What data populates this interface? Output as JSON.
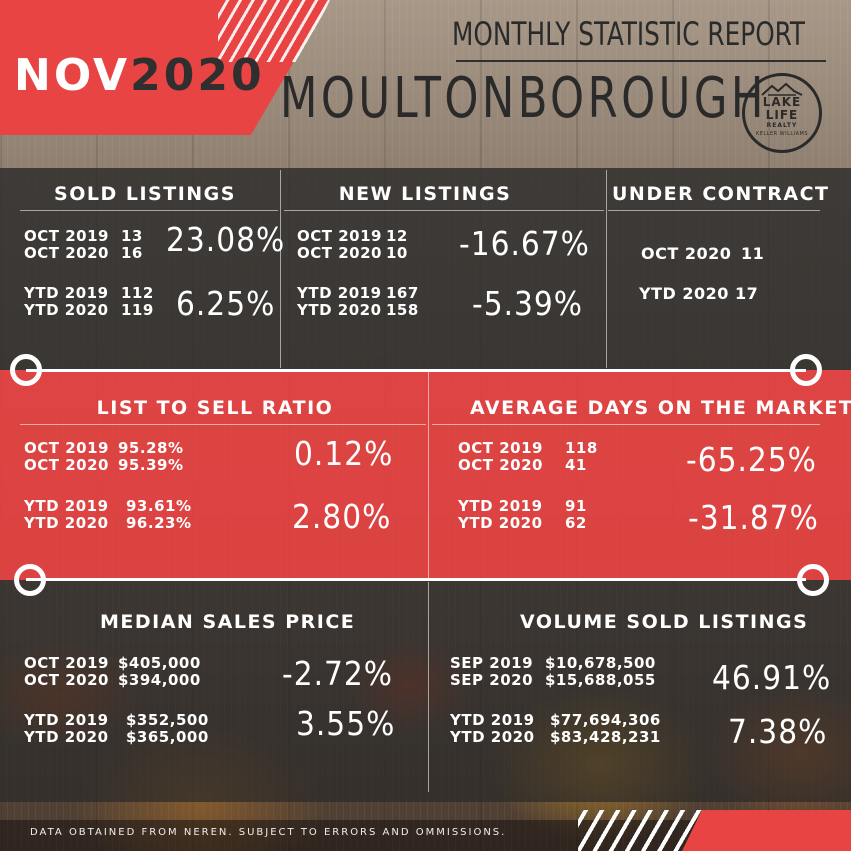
{
  "header": {
    "month": "NOV",
    "year": "2020",
    "report_title": "MONTHLY STATISTIC REPORT",
    "city": "MOULTONBOROUGH",
    "logo": {
      "name_line1": "LAKE",
      "name_line2": "LIFE",
      "sub": "REALTY",
      "brokerage": "KELLER WILLIAMS"
    }
  },
  "sold_listings": {
    "title": "SOLD LISTINGS",
    "monthly": [
      {
        "label": "OCT 2019",
        "value": "13"
      },
      {
        "label": "OCT 2020",
        "value": "16"
      }
    ],
    "monthly_change": "23.08%",
    "ytd": [
      {
        "label": "YTD 2019",
        "value": "112"
      },
      {
        "label": "YTD 2020",
        "value": "119"
      }
    ],
    "ytd_change": "6.25%"
  },
  "new_listings": {
    "title": "NEW LISTINGS",
    "monthly": [
      {
        "label": "OCT 2019",
        "value": "12"
      },
      {
        "label": "OCT 2020",
        "value": "10"
      }
    ],
    "monthly_change": "-16.67%",
    "ytd": [
      {
        "label": "YTD 2019",
        "value": "167"
      },
      {
        "label": "YTD 2020",
        "value": "158"
      }
    ],
    "ytd_change": "-5.39%"
  },
  "under_contract": {
    "title": "UNDER CONTRACT",
    "rows": [
      {
        "label": "OCT  2020",
        "value": "11"
      },
      {
        "label": "YTD  2020",
        "value": "17"
      }
    ]
  },
  "list_to_sell": {
    "title": "LIST TO SELL RATIO",
    "monthly": [
      {
        "label": "OCT 2019",
        "value": "95.28%"
      },
      {
        "label": "OCT 2020",
        "value": "95.39%"
      }
    ],
    "monthly_change": "0.12%",
    "ytd": [
      {
        "label": "YTD 2019",
        "value": "93.61%"
      },
      {
        "label": "YTD 2020",
        "value": "96.23%"
      }
    ],
    "ytd_change": "2.80%"
  },
  "avg_days": {
    "title": "AVERAGE DAYS ON THE MARKET",
    "monthly": [
      {
        "label": "OCT 2019",
        "value": "118"
      },
      {
        "label": "OCT 2020",
        "value": "41"
      }
    ],
    "monthly_change": "-65.25%",
    "ytd": [
      {
        "label": "YTD 2019",
        "value": "91"
      },
      {
        "label": "YTD 2020",
        "value": "62"
      }
    ],
    "ytd_change": "-31.87%"
  },
  "median_price": {
    "title": "MEDIAN SALES PRICE",
    "monthly": [
      {
        "label": "OCT 2019",
        "value": "$405,000"
      },
      {
        "label": "OCT 2020",
        "value": "$394,000"
      }
    ],
    "monthly_change": "-2.72%",
    "ytd": [
      {
        "label": "YTD 2019",
        "value": "$352,500"
      },
      {
        "label": "YTD 2020",
        "value": "$365,000"
      }
    ],
    "ytd_change": "3.55%"
  },
  "volume_sold": {
    "title": "VOLUME SOLD LISTINGS",
    "monthly": [
      {
        "label": "SEP 2019",
        "value": "$10,678,500"
      },
      {
        "label": "SEP 2020",
        "value": "$15,688,055"
      }
    ],
    "monthly_change": "46.91%",
    "ytd": [
      {
        "label": "YTD 2019",
        "value": "$77,694,306"
      },
      {
        "label": "YTD 2020",
        "value": "$83,428,231"
      }
    ],
    "ytd_change": "7.38%"
  },
  "footer": {
    "disclaimer": "DATA OBTAINED FROM NEREN. SUBJECT TO ERRORS AND OMMISSIONS."
  },
  "colors": {
    "accent_red": "#e94444",
    "dark_panel": "#2a2a2a",
    "text_light": "#ffffff"
  }
}
